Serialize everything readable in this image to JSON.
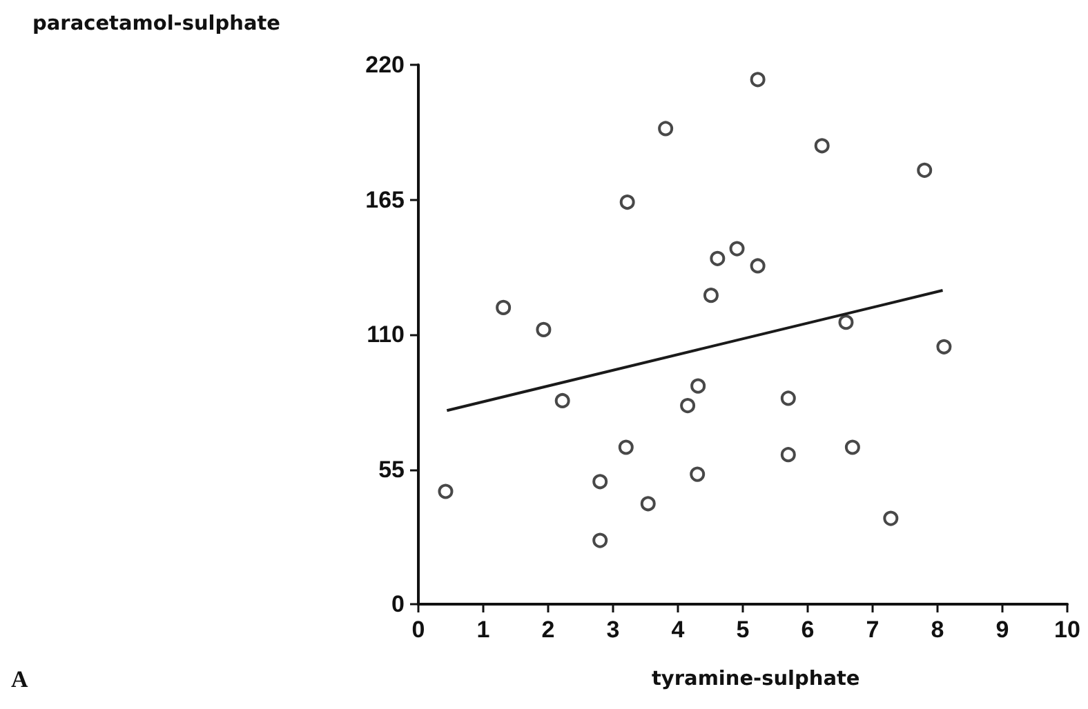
{
  "chart_data": {
    "type": "scatter",
    "xlabel": "tyramine-sulphate",
    "ylabel": "paracetamol-sulphate",
    "annotations": [
      "A"
    ],
    "xlim": [
      0,
      10
    ],
    "xticks": [
      0,
      1,
      2,
      3,
      4,
      5,
      6,
      7,
      8,
      9,
      10
    ],
    "ylim": [
      0,
      220
    ],
    "yticks": [
      0,
      55,
      110,
      165,
      220
    ],
    "grid": false,
    "marker": "circle",
    "series": [
      {
        "color": "#1a1a1a",
        "x": [
          3.81,
          3.22,
          4.61,
          4.51,
          1.31,
          1.93,
          5.23,
          6.22,
          7.8,
          4.91,
          5.23,
          6.59,
          0.42,
          2.22,
          4.15,
          4.31,
          3.2,
          2.8,
          3.54,
          4.3,
          2.8,
          8.1,
          5.7,
          5.7,
          6.69,
          7.28
        ],
        "values": [
          194,
          164,
          141,
          126,
          121,
          112,
          214,
          187,
          177,
          145,
          138,
          115,
          46,
          83,
          81,
          89,
          64,
          50,
          41,
          53,
          26,
          105,
          84,
          61,
          64,
          35
        ]
      },
      {
        "type": "line",
        "color": "#1a1a1a",
        "line_style": "solid",
        "marker": "none",
        "x": [
          0.44,
          8.08
        ],
        "values": [
          79,
          128
        ]
      }
    ]
  }
}
